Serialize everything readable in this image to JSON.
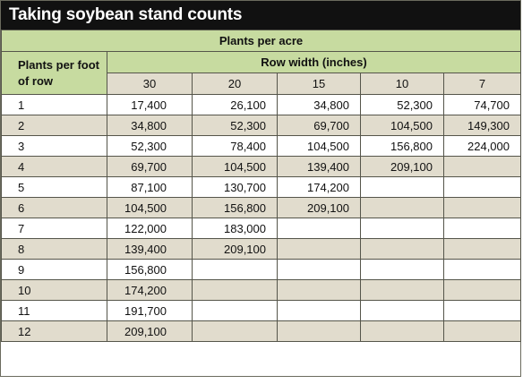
{
  "title": "Taking soybean stand counts",
  "header": {
    "plants_per_acre": "Plants per acre",
    "row_label": "Plants per foot of row",
    "row_width": "Row width (inches)",
    "columns": [
      "30",
      "20",
      "15",
      "10",
      "7"
    ]
  },
  "rows": [
    {
      "label": "1",
      "values": [
        "17,400",
        "26,100",
        "34,800",
        "52,300",
        "74,700"
      ]
    },
    {
      "label": "2",
      "values": [
        "34,800",
        "52,300",
        "69,700",
        "104,500",
        "149,300"
      ]
    },
    {
      "label": "3",
      "values": [
        "52,300",
        "78,400",
        "104,500",
        "156,800",
        "224,000"
      ]
    },
    {
      "label": "4",
      "values": [
        "69,700",
        "104,500",
        "139,400",
        "209,100",
        ""
      ]
    },
    {
      "label": "5",
      "values": [
        "87,100",
        "130,700",
        "174,200",
        "",
        ""
      ]
    },
    {
      "label": "6",
      "values": [
        "104,500",
        "156,800",
        "209,100",
        "",
        ""
      ]
    },
    {
      "label": "7",
      "values": [
        "122,000",
        "183,000",
        "",
        "",
        ""
      ]
    },
    {
      "label": "8",
      "values": [
        "139,400",
        "209,100",
        "",
        "",
        ""
      ]
    },
    {
      "label": "9",
      "values": [
        "156,800",
        "",
        "",
        "",
        ""
      ]
    },
    {
      "label": "10",
      "values": [
        "174,200",
        "",
        "",
        "",
        ""
      ]
    },
    {
      "label": "11",
      "values": [
        "191,700",
        "",
        "",
        "",
        ""
      ]
    },
    {
      "label": "12",
      "values": [
        "209,100",
        "",
        "",
        "",
        ""
      ]
    }
  ]
}
